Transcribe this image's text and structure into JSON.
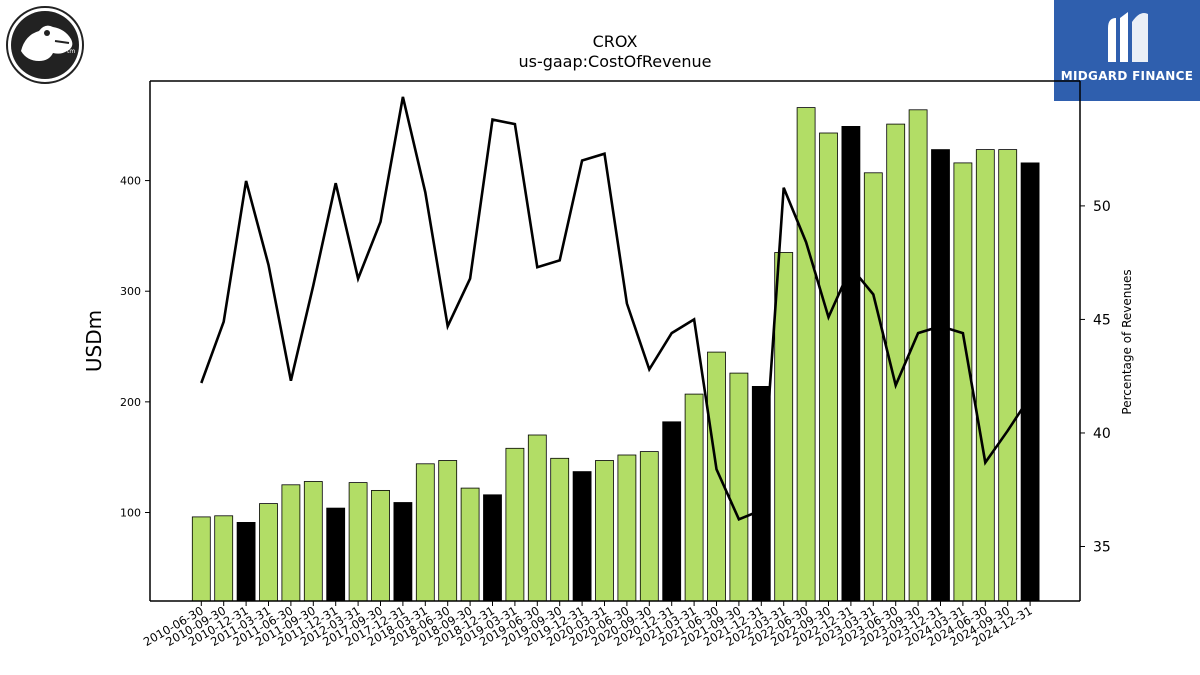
{
  "header": {
    "title": "CROX",
    "subtitle": "us-gaap:CostOfRevenue"
  },
  "branding": {
    "right_logo_text": "MIDGARD FINANCE",
    "right_logo_color": "#2f5fae",
    "left_logo": "crocodile-logo-icon"
  },
  "chart_data": {
    "type": "bar",
    "title": "CROX",
    "subtitle": "us-gaap:CostOfRevenue",
    "ylabel": "USDm",
    "y2label": "Percentage of Revenues",
    "ylim": [
      20,
      490
    ],
    "y2lim": [
      32.6,
      55.5
    ],
    "yticks": [
      100,
      200,
      300,
      400
    ],
    "y2ticks": [
      35,
      40,
      45,
      50
    ],
    "colors": {
      "quarter": "#b2dd66",
      "year_end": "#000000",
      "line": "#000000"
    },
    "categories": [
      "2010-06-30",
      "2010-09-30",
      "2010-12-31",
      "2011-03-31",
      "2011-06-30",
      "2011-09-30",
      "2011-12-31",
      "2012-03-31",
      "2017-09-30",
      "2017-12-31",
      "2018-03-31",
      "2018-06-30",
      "2018-09-30",
      "2018-12-31",
      "2019-03-31",
      "2019-06-30",
      "2019-09-30",
      "2019-12-31",
      "2020-03-31",
      "2020-06-30",
      "2020-09-30",
      "2020-12-31",
      "2021-03-31",
      "2021-06-30",
      "2021-09-30",
      "2021-12-31",
      "2022-03-31",
      "2022-06-30",
      "2022-09-30",
      "2022-12-31",
      "2023-03-31",
      "2023-06-30",
      "2023-09-30",
      "2023-12-31",
      "2024-03-31",
      "2024-06-30",
      "2024-09-30",
      "2024-12-31"
    ],
    "series": [
      {
        "values": [
          96,
          97,
          91,
          108,
          125,
          128,
          104,
          127,
          120,
          109,
          144,
          147,
          122,
          116,
          158,
          170,
          149,
          137,
          147,
          152,
          155,
          182,
          207,
          245,
          226,
          214,
          335,
          466,
          443,
          449,
          407,
          451,
          464,
          428,
          416,
          428,
          428,
          416
        ],
        "year_end": [
          false,
          false,
          true,
          false,
          false,
          false,
          true,
          false,
          false,
          true,
          false,
          false,
          false,
          true,
          false,
          false,
          false,
          true,
          false,
          false,
          false,
          true,
          false,
          false,
          false,
          true,
          false,
          false,
          false,
          true,
          false,
          false,
          false,
          true,
          false,
          false,
          false,
          true
        ]
      },
      {
        "values": [
          42.2,
          44.9,
          51.1,
          47.4,
          42.3,
          46.5,
          51.0,
          46.8,
          49.3,
          54.8,
          50.6,
          44.7,
          46.8,
          53.8,
          53.6,
          47.3,
          47.6,
          52.0,
          52.3,
          45.7,
          42.8,
          44.4,
          45.0,
          38.4,
          36.2,
          36.6,
          50.8,
          48.4,
          45.1,
          47.3,
          46.1,
          42.1,
          44.4,
          44.7,
          44.4,
          38.7,
          40.1,
          41.6
        ]
      }
    ]
  }
}
